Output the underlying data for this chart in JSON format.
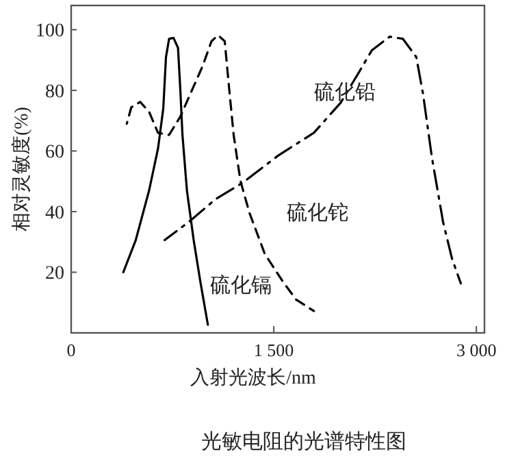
{
  "chart_data": {
    "type": "line",
    "xlabel": "入射光波长/nm",
    "ylabel": "相对灵敏度(%)",
    "xlim": [
      0,
      3060
    ],
    "ylim": [
      0,
      108
    ],
    "xticks": [
      0,
      {
        "value": 1500,
        "label": "1 500"
      },
      {
        "value": 3000,
        "label": "3 000"
      }
    ],
    "yticks": [
      20,
      40,
      60,
      80,
      100
    ],
    "grid": false,
    "legend": false,
    "marker": "none",
    "series": [
      {
        "name": "硫化镉",
        "color": "#000000",
        "line_style": "solid",
        "x": [
          386,
          478,
          577,
          643,
          682,
          702,
          725,
          758,
          791,
          808,
          824,
          857,
          907,
          956,
          1012
        ],
        "values": [
          20,
          30.6,
          47,
          60.8,
          74,
          91,
          97,
          97.3,
          94,
          80.4,
          65.3,
          47,
          30.6,
          17,
          2.7
        ]
      },
      {
        "name": "硫化铊",
        "color": "#000000",
        "line_style": "dashed",
        "x": [
          412,
          445,
          511,
          577,
          643,
          725,
          808,
          890,
          973,
          1039,
          1088,
          1137,
          1170,
          1203,
          1253,
          1319,
          1434,
          1566,
          1665,
          1797
        ],
        "values": [
          69,
          74.4,
          76.2,
          72.9,
          66,
          65.3,
          71.3,
          79.6,
          88,
          96.2,
          98.2,
          96.2,
          80.4,
          65.3,
          50.2,
          39.7,
          26,
          17,
          11,
          7.2
        ]
      },
      {
        "name": "硫化铅",
        "color": "#000000",
        "line_style": "dashdot",
        "x": [
          692,
          874,
          1072,
          1269,
          1533,
          1797,
          1995,
          2127,
          2226,
          2358,
          2456,
          2555,
          2605,
          2671,
          2753,
          2819,
          2885
        ],
        "values": [
          30.6,
          36.7,
          44.2,
          49.5,
          58.5,
          66,
          75.9,
          85.7,
          93.2,
          97.7,
          97,
          91,
          78.9,
          57.8,
          36.7,
          24.6,
          16.3
        ]
      }
    ],
    "annotations": [
      "光敏电阻的光谱特性图"
    ]
  }
}
